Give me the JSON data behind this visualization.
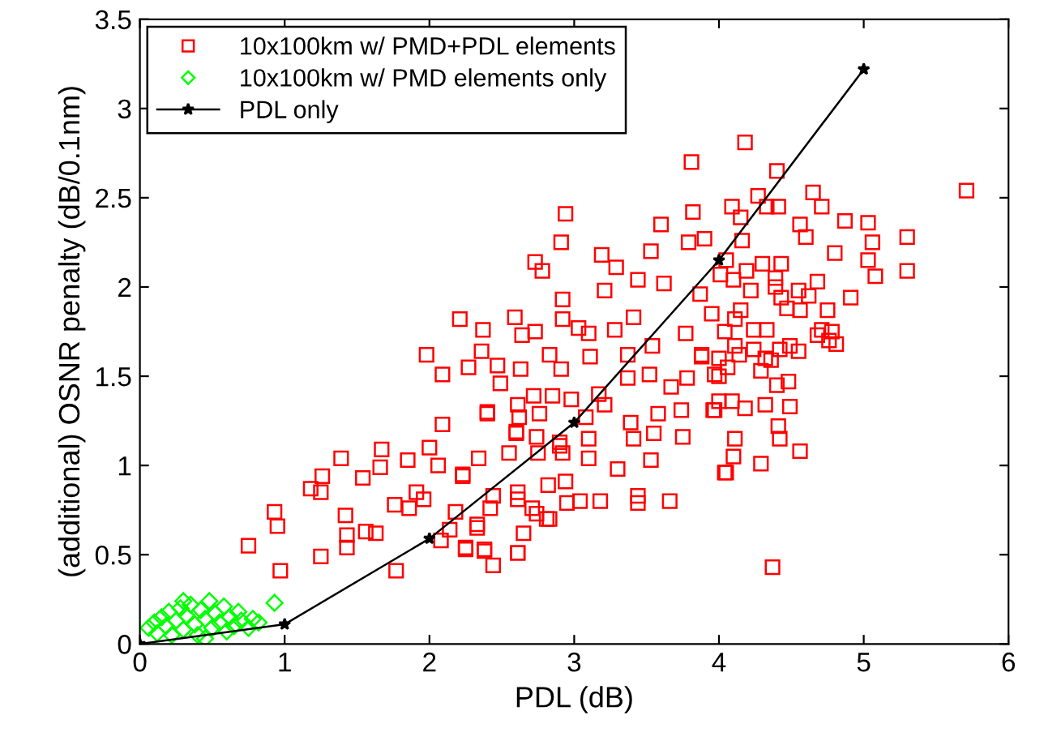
{
  "chart_data": {
    "type": "scatter",
    "xlabel": "PDL (dB)",
    "ylabel": "(additional) OSNR penalty (dB/0.1nm)",
    "xlim": [
      0,
      6
    ],
    "xticks": [
      0,
      1,
      2,
      3,
      4,
      5,
      6
    ],
    "ylim": [
      0,
      3.5
    ],
    "yticks": [
      0,
      0.5,
      1,
      1.5,
      2,
      2.5,
      3,
      3.5
    ],
    "grid": false,
    "legend": "top left",
    "series": [
      {
        "name": "10x100km w/ PMD+PDL elements",
        "marker": "square",
        "color": "#ff0000",
        "x": [
          0.75,
          0.93,
          0.95,
          0.97,
          1.18,
          1.26,
          1.25,
          1.25,
          1.39,
          1.42,
          1.43,
          1.43,
          1.54,
          1.56,
          1.63,
          1.66,
          1.67,
          1.76,
          1.77,
          1.85,
          1.86,
          1.91,
          1.96,
          2.0,
          2.09,
          2.08,
          2.14,
          2.18,
          2.23,
          2.25,
          2.33,
          2.34,
          2.38,
          2.42,
          2.44,
          2.4,
          2.61,
          2.65,
          2.55,
          2.6,
          2.61,
          2.71,
          2.82,
          2.81,
          2.9,
          2.94,
          3.81,
          2.94,
          2.91,
          2.73,
          2.78,
          3.19,
          3.29,
          3.6,
          3.82,
          3.79,
          3.53,
          3.44,
          3.62,
          3.21,
          2.21,
          2.37,
          2.59,
          2.64,
          2.73,
          2.92,
          2.92,
          1.98,
          2.09,
          2.27,
          2.36,
          2.47,
          2.63,
          2.83,
          2.91,
          3.03,
          3.1,
          3.28,
          3.41,
          3.11,
          3.37,
          3.54,
          3.77,
          3.88,
          2.49,
          2.72,
          2.61,
          2.85,
          2.98,
          3.17,
          3.21,
          3.37,
          3.52,
          3.67,
          3.78,
          4.0,
          2.4,
          2.62,
          2.76,
          3.08,
          3.39,
          3.58,
          3.74,
          3.96,
          2.6,
          2.74,
          2.9,
          3.1,
          3.41,
          3.55,
          3.75,
          2.75,
          2.92,
          3.1,
          3.3,
          3.53,
          4.04,
          2.06,
          2.23,
          2.44,
          2.61,
          2.74,
          2.83,
          2.95,
          3.04,
          3.18,
          3.44,
          3.44,
          3.66,
          2.33,
          2.25,
          2.38,
          2.61,
          4.18,
          4.4,
          4.27,
          4.09,
          4.33,
          4.41,
          4.65,
          4.71,
          4.15,
          4.56,
          4.6,
          4.87,
          5.03,
          3.9,
          4.16,
          4.8,
          5.06,
          5.3,
          5.71,
          5.03,
          5.08,
          5.3,
          4.05,
          4.01,
          4.3,
          4.43,
          4.19,
          4.1,
          4.22,
          4.39,
          4.39,
          4.55,
          4.68,
          4.91,
          4.62,
          3.87,
          4.43,
          4.47,
          4.56,
          4.75,
          3.95,
          4.11,
          4.15,
          4.04,
          4.24,
          4.33,
          4.71,
          4.78,
          4.68,
          4.76,
          4.81,
          4.55,
          4.49,
          4.42,
          4.24,
          4.11,
          4.14,
          4.0,
          3.88,
          4.06,
          4.32,
          4.36,
          4.29,
          3.97,
          4.4,
          4.48,
          4.0,
          4.09,
          4.18,
          3.97,
          4.32,
          4.49,
          4.41,
          4.42,
          4.11,
          4.1,
          4.56,
          4.29,
          4.05,
          4.37
        ],
        "values": [
          0.55,
          0.74,
          0.66,
          0.41,
          0.87,
          0.94,
          0.85,
          0.49,
          1.04,
          0.72,
          0.61,
          0.54,
          0.93,
          0.63,
          0.62,
          0.99,
          1.09,
          0.78,
          0.41,
          1.03,
          0.76,
          0.85,
          0.81,
          1.1,
          1.23,
          0.58,
          0.64,
          0.74,
          0.94,
          0.54,
          0.67,
          1.04,
          0.53,
          0.76,
          0.44,
          1.3,
          0.51,
          0.62,
          1.07,
          1.19,
          0.85,
          0.76,
          0.89,
          0.7,
          1.11,
          0.91,
          2.7,
          2.41,
          2.25,
          2.14,
          2.09,
          2.18,
          2.11,
          2.35,
          2.42,
          2.25,
          2.2,
          2.04,
          2.02,
          1.98,
          1.82,
          1.76,
          1.83,
          1.73,
          1.75,
          1.93,
          1.82,
          1.62,
          1.51,
          1.55,
          1.64,
          1.56,
          1.54,
          1.62,
          1.54,
          1.77,
          1.74,
          1.76,
          1.83,
          1.61,
          1.62,
          1.67,
          1.74,
          1.62,
          1.46,
          1.39,
          1.34,
          1.39,
          1.37,
          1.4,
          1.34,
          1.49,
          1.51,
          1.44,
          1.49,
          1.5,
          1.29,
          1.27,
          1.29,
          1.27,
          1.24,
          1.29,
          1.31,
          1.31,
          1.18,
          1.16,
          1.13,
          1.15,
          1.15,
          1.18,
          1.16,
          1.07,
          1.07,
          1.04,
          0.98,
          1.03,
          0.96,
          1.0,
          0.95,
          0.83,
          0.81,
          0.73,
          0.7,
          0.79,
          0.8,
          0.8,
          0.83,
          0.79,
          0.8,
          0.65,
          0.53,
          0.52,
          0.51,
          2.81,
          2.65,
          2.51,
          2.45,
          2.45,
          2.45,
          2.53,
          2.45,
          2.39,
          2.35,
          2.28,
          2.37,
          2.36,
          2.27,
          2.26,
          2.19,
          2.25,
          2.28,
          2.54,
          2.15,
          2.06,
          2.09,
          2.15,
          2.07,
          2.13,
          2.13,
          2.09,
          2.04,
          1.98,
          2.05,
          2.0,
          1.98,
          2.03,
          1.94,
          1.95,
          1.96,
          1.94,
          1.88,
          1.87,
          1.87,
          1.85,
          1.82,
          1.87,
          1.75,
          1.76,
          1.76,
          1.76,
          1.75,
          1.73,
          1.7,
          1.68,
          1.64,
          1.67,
          1.65,
          1.65,
          1.67,
          1.62,
          1.6,
          1.61,
          1.55,
          1.6,
          1.59,
          1.53,
          1.51,
          1.45,
          1.47,
          1.36,
          1.36,
          1.32,
          1.31,
          1.34,
          1.33,
          1.22,
          1.15,
          1.15,
          1.05,
          1.08,
          1.01,
          0.96,
          0.43
        ]
      },
      {
        "name": "10x100km w/ PMD elements only",
        "marker": "diamond",
        "color": "#00ff00",
        "x": [
          0.06,
          0.1,
          0.12,
          0.15,
          0.18,
          0.2,
          0.22,
          0.25,
          0.28,
          0.3,
          0.32,
          0.35,
          0.38,
          0.4,
          0.42,
          0.45,
          0.48,
          0.5,
          0.52,
          0.55,
          0.58,
          0.6,
          0.62,
          0.65,
          0.68,
          0.7,
          0.75,
          0.78,
          0.82,
          0.93,
          0.45,
          0.3
        ],
        "values": [
          0.09,
          0.12,
          0.06,
          0.15,
          0.1,
          0.18,
          0.05,
          0.13,
          0.2,
          0.08,
          0.16,
          0.22,
          0.11,
          0.05,
          0.19,
          0.14,
          0.24,
          0.09,
          0.17,
          0.12,
          0.21,
          0.07,
          0.15,
          0.1,
          0.18,
          0.13,
          0.09,
          0.14,
          0.12,
          0.23,
          0.03,
          0.24
        ]
      },
      {
        "name": "PDL only",
        "type": "line",
        "marker": "star",
        "line_style": "solid",
        "color": "#000000",
        "x": [
          0,
          1,
          2,
          3,
          4,
          5
        ],
        "values": [
          0,
          0.11,
          0.59,
          1.24,
          2.15,
          3.22
        ]
      }
    ]
  }
}
